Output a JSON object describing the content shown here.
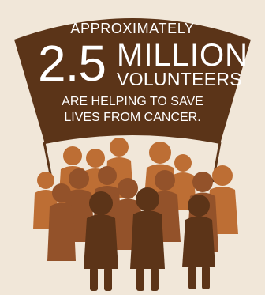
{
  "banner": {
    "kicker": "APPROXIMATELY",
    "big_number": "2.5",
    "unit_top": "MILLION",
    "unit_bottom": "VOLUNTEERS",
    "line3": "ARE HELPING TO SAVE",
    "line4": "LIVES FROM CANCER."
  },
  "colors": {
    "background": "#f1e7d9",
    "banner": "#5b3418",
    "text": "#ffffff",
    "people_back": "#bd6e34",
    "people_mid": "#93522a",
    "people_front": "#5c3418"
  },
  "icons": {
    "crowd": "crowd-of-people-icon",
    "banner": "banner-flag-shape"
  }
}
